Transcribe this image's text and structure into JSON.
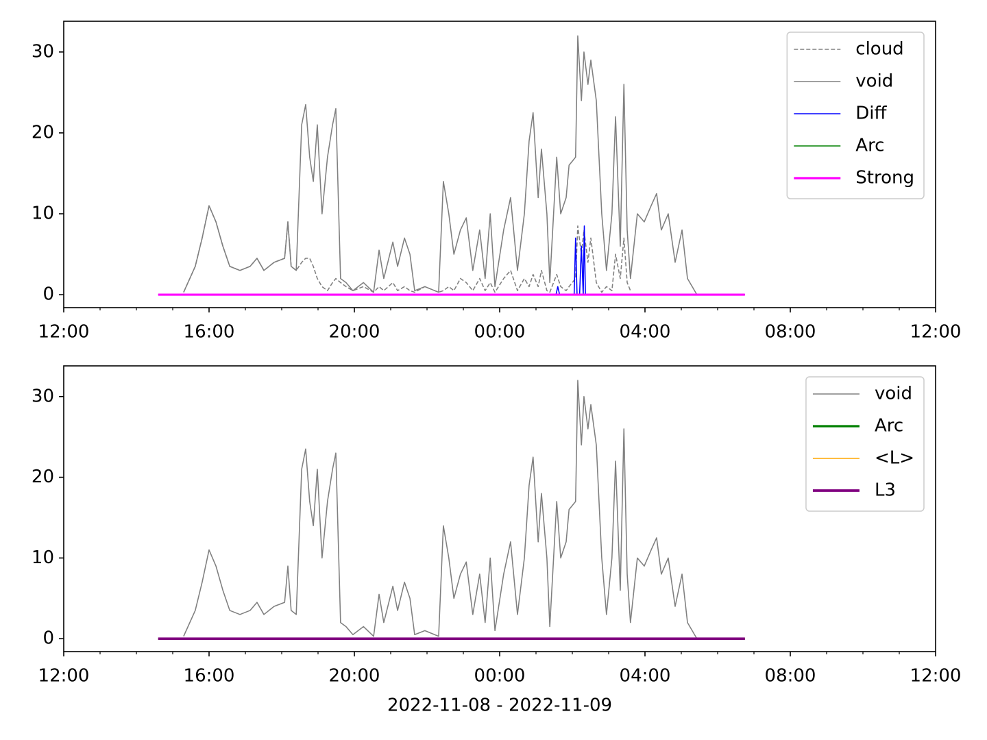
{
  "chart_data": [
    {
      "type": "line",
      "x": [
        15.3,
        15.62,
        15.81,
        16.0,
        16.19,
        16.38,
        16.57,
        16.85,
        17.13,
        17.32,
        17.51,
        17.79,
        18.08,
        18.17,
        18.26,
        18.4,
        18.55,
        18.66,
        18.77,
        18.87,
        18.98,
        19.11,
        19.26,
        19.4,
        19.49,
        19.62,
        19.77,
        19.96,
        20.25,
        20.53,
        20.68,
        20.81,
        21.06,
        21.19,
        21.38,
        21.53,
        21.66,
        21.94,
        22.32,
        22.45,
        22.6,
        22.74,
        22.92,
        23.08,
        23.26,
        23.45,
        23.6,
        23.74,
        23.87,
        24.11,
        24.3,
        24.49,
        24.68,
        24.81,
        24.92,
        25.06,
        25.15,
        25.3,
        25.38,
        25.57,
        25.68,
        25.83,
        25.91,
        26.09,
        26.15,
        26.25,
        26.32,
        26.43,
        26.51,
        26.66,
        26.81,
        26.94,
        27.09,
        27.19,
        27.32,
        27.42,
        27.51,
        27.6,
        27.79,
        27.98,
        28.17,
        28.32,
        28.45,
        28.64,
        28.83,
        29.02,
        29.17,
        29.43
      ],
      "series": [
        {
          "name": "cloud",
          "color": "#808080",
          "linestyle": "dashed",
          "linewidth": 1.5,
          "values": [
            0.3,
            3.5,
            7,
            11,
            9,
            6,
            3.5,
            3,
            3.5,
            4.5,
            3,
            4,
            4.5,
            9,
            3.5,
            3,
            4,
            4.5,
            4.5,
            3.5,
            2,
            1,
            0.5,
            1.5,
            2,
            1.5,
            1,
            0.5,
            1,
            0.3,
            1,
            0.5,
            1.5,
            0.5,
            1,
            0.5,
            0.3,
            1,
            0.3,
            0.5,
            1,
            0.5,
            2,
            1.5,
            0.5,
            2,
            0.5,
            1.5,
            0.3,
            2,
            3,
            0.5,
            2,
            1,
            2.5,
            1,
            3,
            0.5,
            0.3,
            2.5,
            1,
            0.5,
            1,
            2,
            8.5,
            5,
            8,
            4,
            7,
            1.5,
            0.3,
            1,
            0.5,
            5,
            2,
            7,
            1.5,
            0.5,
            null,
            null,
            null,
            null,
            null,
            null,
            null,
            null,
            null,
            null
          ]
        },
        {
          "name": "void",
          "color": "#808080",
          "linewidth": 1.5,
          "values": [
            0.3,
            3.5,
            7,
            11,
            9,
            6,
            3.5,
            3,
            3.5,
            4.5,
            3,
            4,
            4.5,
            9,
            3.5,
            3,
            21,
            23.5,
            17,
            14,
            21,
            10,
            17,
            21,
            23,
            2,
            1.5,
            0.5,
            1.5,
            0.3,
            5.5,
            2,
            6.5,
            3.5,
            7,
            5,
            0.5,
            1,
            0.3,
            14,
            10,
            5,
            8,
            9.5,
            3,
            8,
            2,
            10,
            1,
            8,
            12,
            3,
            10,
            19,
            22.5,
            12,
            18,
            10,
            1.5,
            17,
            10,
            12,
            16,
            17,
            32,
            24,
            30,
            26,
            29,
            24,
            10,
            3,
            10,
            22,
            6,
            26,
            8,
            2,
            10,
            9,
            11,
            12.5,
            8,
            10,
            4,
            8,
            2,
            0
          ]
        },
        {
          "name": "Diff",
          "color": "#0000ff",
          "linewidth": 1.5,
          "x": [
            25.55,
            25.6,
            25.65,
            26.05,
            26.09,
            26.13,
            26.2,
            26.25,
            26.3,
            26.33,
            26.36,
            26.4
          ],
          "values": [
            0,
            1,
            0,
            0,
            7,
            0,
            0,
            6,
            0,
            8.5,
            0,
            0
          ]
        },
        {
          "name": "Arc",
          "color": "#008000",
          "linewidth": 1.5,
          "x": [
            14.6,
            30.75
          ],
          "values": [
            0,
            0
          ]
        },
        {
          "name": "Strong",
          "color": "#ff00ff",
          "linewidth": 3,
          "x": [
            14.6,
            30.75
          ],
          "values": [
            0,
            0
          ]
        }
      ],
      "xlim": [
        12,
        36
      ],
      "xticks": [
        {
          "value": 12,
          "label": "12:00"
        },
        {
          "value": 16,
          "label": "16:00"
        },
        {
          "value": 20,
          "label": "20:00"
        },
        {
          "value": 24,
          "label": "00:00"
        },
        {
          "value": 28,
          "label": "04:00"
        },
        {
          "value": 32,
          "label": "08:00"
        },
        {
          "value": 36,
          "label": "12:00"
        }
      ],
      "xminorticks": [
        13,
        14,
        15,
        17,
        18,
        19,
        21,
        22,
        23,
        25,
        26,
        27,
        29,
        30,
        31,
        33,
        34,
        35
      ],
      "ylim": [
        -1.6,
        33.8
      ],
      "yticks": [
        0,
        10,
        20,
        30
      ],
      "legend": "upper right"
    },
    {
      "type": "line",
      "x": [
        15.3,
        15.62,
        15.81,
        16.0,
        16.19,
        16.38,
        16.57,
        16.85,
        17.13,
        17.32,
        17.51,
        17.79,
        18.08,
        18.17,
        18.26,
        18.4,
        18.55,
        18.66,
        18.77,
        18.87,
        18.98,
        19.11,
        19.26,
        19.4,
        19.49,
        19.62,
        19.77,
        19.96,
        20.25,
        20.53,
        20.68,
        20.81,
        21.06,
        21.19,
        21.38,
        21.53,
        21.66,
        21.94,
        22.32,
        22.45,
        22.6,
        22.74,
        22.92,
        23.08,
        23.26,
        23.45,
        23.6,
        23.74,
        23.87,
        24.11,
        24.3,
        24.49,
        24.68,
        24.81,
        24.92,
        25.06,
        25.15,
        25.3,
        25.38,
        25.57,
        25.68,
        25.83,
        25.91,
        26.09,
        26.15,
        26.25,
        26.32,
        26.43,
        26.51,
        26.66,
        26.81,
        26.94,
        27.09,
        27.19,
        27.32,
        27.42,
        27.51,
        27.6,
        27.79,
        27.98,
        28.17,
        28.32,
        28.45,
        28.64,
        28.83,
        29.02,
        29.17,
        29.43
      ],
      "series": [
        {
          "name": "void",
          "color": "#808080",
          "linewidth": 1.5,
          "values": [
            0.3,
            3.5,
            7,
            11,
            9,
            6,
            3.5,
            3,
            3.5,
            4.5,
            3,
            4,
            4.5,
            9,
            3.5,
            3,
            21,
            23.5,
            17,
            14,
            21,
            10,
            17,
            21,
            23,
            2,
            1.5,
            0.5,
            1.5,
            0.3,
            5.5,
            2,
            6.5,
            3.5,
            7,
            5,
            0.5,
            1,
            0.3,
            14,
            10,
            5,
            8,
            9.5,
            3,
            8,
            2,
            10,
            1,
            8,
            12,
            3,
            10,
            19,
            22.5,
            12,
            18,
            10,
            1.5,
            17,
            10,
            12,
            16,
            17,
            32,
            24,
            30,
            26,
            29,
            24,
            10,
            3,
            10,
            22,
            6,
            26,
            8,
            2,
            10,
            9,
            11,
            12.5,
            8,
            10,
            4,
            8,
            2,
            0
          ]
        },
        {
          "name": "Arc",
          "color": "#008000",
          "linewidth": 3,
          "x": [
            14.6,
            30.75
          ],
          "values": [
            0,
            0
          ]
        },
        {
          "name": "<L>",
          "color": "#ffa500",
          "linewidth": 1.5,
          "x": [
            14.6,
            30.75
          ],
          "values": [
            0,
            0
          ]
        },
        {
          "name": "L3",
          "color": "#800080",
          "linewidth": 3.5,
          "x": [
            14.6,
            30.75
          ],
          "values": [
            0,
            0
          ]
        }
      ],
      "xlim": [
        12,
        36
      ],
      "xticks": [
        {
          "value": 12,
          "label": "12:00"
        },
        {
          "value": 16,
          "label": "16:00"
        },
        {
          "value": 20,
          "label": "20:00"
        },
        {
          "value": 24,
          "label": "00:00"
        },
        {
          "value": 28,
          "label": "04:00"
        },
        {
          "value": 32,
          "label": "08:00"
        },
        {
          "value": 36,
          "label": "12:00"
        }
      ],
      "xminorticks": [
        13,
        14,
        15,
        17,
        18,
        19,
        21,
        22,
        23,
        25,
        26,
        27,
        29,
        30,
        31,
        33,
        34,
        35
      ],
      "ylim": [
        -1.6,
        33.8
      ],
      "yticks": [
        0,
        10,
        20,
        30
      ],
      "legend": "upper right",
      "xlabel": "2022-11-08 - 2022-11-09"
    }
  ]
}
